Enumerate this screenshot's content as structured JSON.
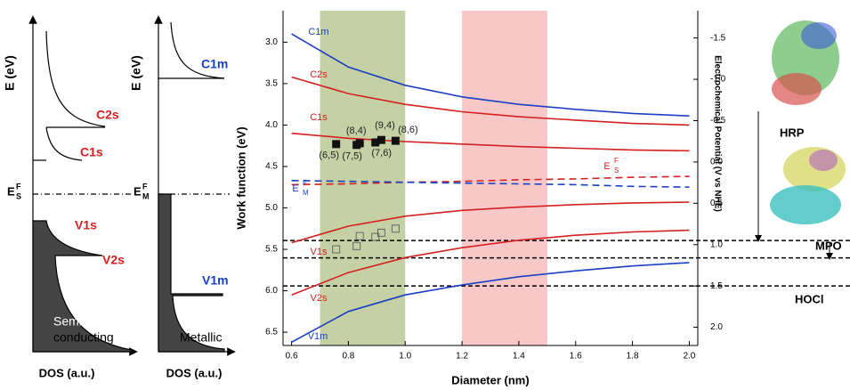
{
  "dos_panels": [
    {
      "y_label": "E (eV)",
      "x_label": "DOS (a.u.)",
      "bands": [
        "C2s",
        "C1s",
        "V1s",
        "V2s"
      ],
      "fermi": {
        "name": "E",
        "sup": "F",
        "sub": "S"
      },
      "caption": [
        "Semi-",
        "conducting"
      ]
    },
    {
      "y_label": "E (eV)",
      "x_label": "DOS (a.u.)",
      "bands": [
        "C1m",
        "V1m"
      ],
      "fermi": {
        "name": "E",
        "sup": "F",
        "sub": "M"
      },
      "caption": [
        "Metallic"
      ]
    }
  ],
  "chart_data": {
    "type": "line",
    "x_label": "Diameter (nm)",
    "y_label": "Work function (eV)",
    "y2_label": "Electrochemical Potential (V vs NHE)",
    "xlim": [
      0.57,
      2.03
    ],
    "xticks": [
      0.6,
      0.8,
      {
        "value": 1,
        "label": "1.0"
      },
      1.2,
      1.4,
      1.6,
      1.8,
      {
        "value": 2,
        "label": "2.0"
      }
    ],
    "ylim": [
      2.62,
      6.66
    ],
    "y_inverted": true,
    "yticks": [
      {
        "value": 3,
        "label": "3.0"
      },
      3.5,
      {
        "value": 4,
        "label": "4.0"
      },
      4.5,
      {
        "value": 5,
        "label": "5.0"
      },
      5.5,
      {
        "value": 6,
        "label": "6.0"
      },
      6.5
    ],
    "y2lim": [
      -1.83,
      2.22
    ],
    "y2_inverted": true,
    "y2ticks": [
      -1.5,
      {
        "value": -1,
        "label": "-1.0"
      },
      -0.5,
      {
        "value": 0,
        "label": "0.0"
      },
      0.5,
      {
        "value": 1,
        "label": "1.0"
      },
      1.5,
      {
        "value": 2,
        "label": "2.0"
      }
    ],
    "x": [
      0.6,
      0.8,
      1.0,
      1.2,
      1.4,
      1.6,
      1.8,
      2.0
    ],
    "series": [
      {
        "name": "C1m",
        "color": "#1a3fc4",
        "values": [
          2.9,
          3.3,
          3.52,
          3.66,
          3.75,
          3.81,
          3.86,
          3.89
        ]
      },
      {
        "name": "C2s",
        "color": "#d42020",
        "values": [
          3.42,
          3.62,
          3.75,
          3.84,
          3.9,
          3.94,
          3.98,
          4.0
        ]
      },
      {
        "name": "C1s",
        "color": "#d42020",
        "values": [
          4.1,
          4.16,
          4.2,
          4.23,
          4.26,
          4.28,
          4.3,
          4.31
        ]
      },
      {
        "name": "E",
        "sup": "F",
        "sub": "S",
        "color": "#d42020",
        "dashed": true,
        "values": [
          4.72,
          4.71,
          4.69,
          4.68,
          4.66,
          4.65,
          4.63,
          4.62
        ]
      },
      {
        "name": "E",
        "sup": "F",
        "sub": "M",
        "color": "#1a3fc4",
        "dashed": true,
        "values": [
          4.67,
          4.68,
          4.69,
          4.7,
          4.71,
          4.72,
          4.74,
          4.75
        ]
      },
      {
        "name": "V1s",
        "color": "#d42020",
        "values": [
          5.42,
          5.22,
          5.1,
          5.03,
          4.99,
          4.96,
          4.94,
          4.93
        ]
      },
      {
        "name": "V2s",
        "color": "#d42020",
        "values": [
          6.05,
          5.78,
          5.6,
          5.48,
          5.39,
          5.33,
          5.29,
          5.27
        ]
      },
      {
        "name": "V1m",
        "color": "#1a3fc4",
        "values": [
          6.62,
          6.25,
          6.05,
          5.93,
          5.83,
          5.76,
          5.7,
          5.66
        ]
      }
    ],
    "scatter": [
      {
        "marker": "filled",
        "x": [
          0.757,
          0.829,
          0.84,
          0.895,
          0.916,
          0.966
        ],
        "values": [
          4.23,
          4.24,
          4.22,
          4.21,
          4.18,
          4.19
        ],
        "labels": [
          "(6,5)",
          "(7,5)",
          "(8,4)",
          "(7,6)",
          "(9,4)",
          "(8,6)"
        ]
      },
      {
        "marker": "open",
        "x": [
          0.757,
          0.829,
          0.84,
          0.895,
          0.916,
          0.966
        ],
        "values": [
          5.5,
          5.46,
          5.34,
          5.35,
          5.3,
          5.25
        ]
      }
    ],
    "regions": [
      {
        "x": [
          0.7,
          1.0
        ],
        "color": "#c5d1a5"
      },
      {
        "x": [
          1.2,
          1.5
        ],
        "color": "#f8c8c8"
      }
    ],
    "ref_lines": [
      {
        "y2": 0.95,
        "label": "HRP"
      },
      {
        "y2": 1.16,
        "label": "MPO"
      },
      {
        "y2": 1.5,
        "label": "HOCl"
      }
    ]
  }
}
